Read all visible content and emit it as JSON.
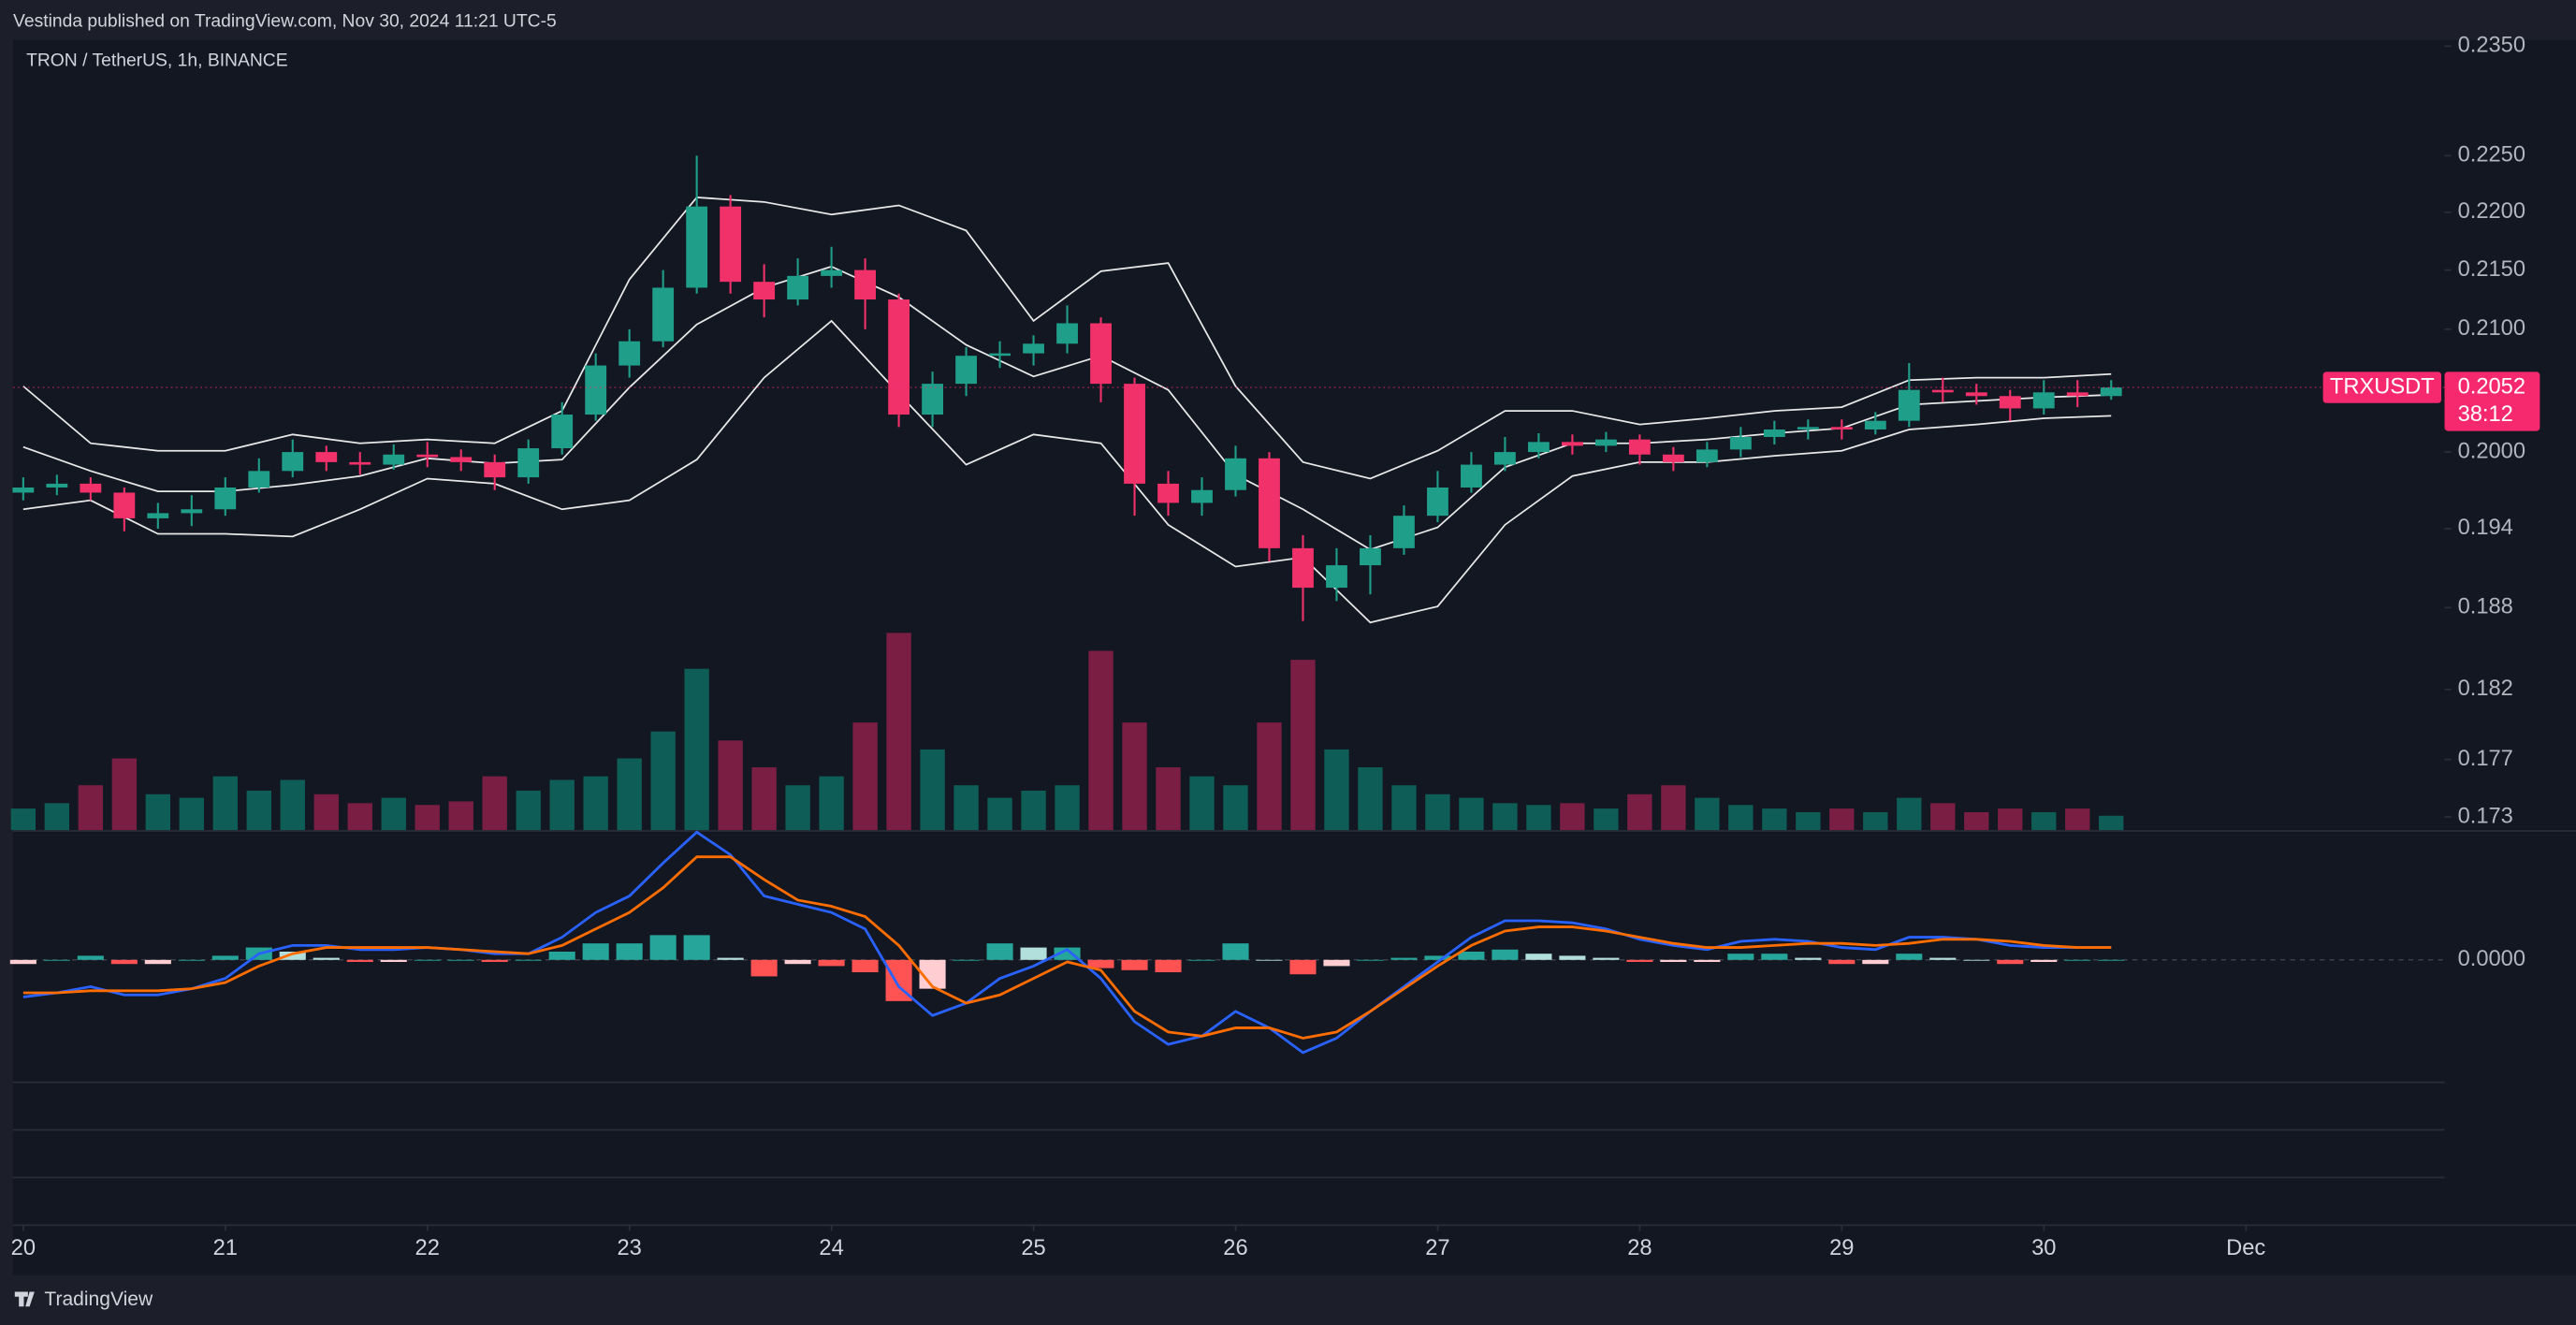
{
  "header": {
    "publisher": "Vestinda published on TradingView.com, Nov 30, 2024 11:21 UTC-5",
    "footer": "TradingView"
  },
  "chart_data": [
    {
      "type": "candlestick",
      "title": "TRON / TetherUS, 1h, BINANCE",
      "log_scale": true,
      "grid": false,
      "up_color": "#1f9e89",
      "down_color": "#f0316a",
      "volume_up_color": "#0e5e57",
      "volume_down_color": "#7a1f43",
      "x": [
        0,
        4,
        8,
        12,
        16,
        20,
        24,
        28,
        32,
        36,
        40,
        44,
        48,
        52,
        56,
        60,
        64,
        68,
        72,
        76,
        80,
        84,
        88,
        92,
        96,
        100,
        104,
        108,
        112,
        116,
        120,
        124,
        128,
        132,
        136,
        140,
        144,
        148,
        152,
        156,
        160,
        164,
        168,
        172,
        176,
        180,
        184,
        188,
        192,
        196,
        200,
        204,
        208,
        212,
        216,
        220,
        224,
        228,
        232,
        236,
        240,
        244,
        248
      ],
      "open": [
        0.1968,
        0.1972,
        0.1975,
        0.1968,
        0.1948,
        0.1952,
        0.1955,
        0.1972,
        0.1985,
        0.2,
        0.1992,
        0.199,
        0.1998,
        0.1996,
        0.1992,
        0.198,
        0.2003,
        0.203,
        0.207,
        0.209,
        0.2135,
        0.2205,
        0.214,
        0.2125,
        0.2145,
        0.215,
        0.2125,
        0.203,
        0.2055,
        0.2078,
        0.208,
        0.2088,
        0.2105,
        0.2055,
        0.1975,
        0.196,
        0.197,
        0.1995,
        0.1925,
        0.1895,
        0.1912,
        0.1925,
        0.195,
        0.1972,
        0.199,
        0.2,
        0.2008,
        0.2005,
        0.201,
        0.1998,
        0.1992,
        0.2002,
        0.2012,
        0.2018,
        0.202,
        0.2018,
        0.2025,
        0.205,
        0.2048,
        0.2045,
        0.2035,
        0.2048,
        0.2045
      ],
      "high": [
        0.198,
        0.1982,
        0.198,
        0.1972,
        0.196,
        0.1966,
        0.198,
        0.1995,
        0.201,
        0.2005,
        0.2,
        0.2006,
        0.2008,
        0.2002,
        0.1998,
        0.201,
        0.204,
        0.208,
        0.21,
        0.215,
        0.225,
        0.2215,
        0.2155,
        0.216,
        0.217,
        0.216,
        0.213,
        0.2065,
        0.2085,
        0.209,
        0.2095,
        0.212,
        0.211,
        0.206,
        0.1985,
        0.198,
        0.2005,
        0.2,
        0.1935,
        0.1925,
        0.1935,
        0.1958,
        0.1985,
        0.2,
        0.2012,
        0.2015,
        0.2014,
        0.2016,
        0.2014,
        0.2004,
        0.2008,
        0.202,
        0.2025,
        0.2026,
        0.2026,
        0.2032,
        0.2072,
        0.206,
        0.2055,
        0.205,
        0.2058,
        0.2058,
        0.2058
      ],
      "low": [
        0.1962,
        0.1966,
        0.1962,
        0.1938,
        0.194,
        0.1942,
        0.195,
        0.1968,
        0.198,
        0.1985,
        0.1982,
        0.1986,
        0.1988,
        0.1985,
        0.197,
        0.1975,
        0.1998,
        0.2025,
        0.206,
        0.2085,
        0.213,
        0.213,
        0.211,
        0.212,
        0.2135,
        0.21,
        0.202,
        0.202,
        0.2045,
        0.2068,
        0.207,
        0.208,
        0.204,
        0.195,
        0.195,
        0.195,
        0.1965,
        0.1915,
        0.187,
        0.1885,
        0.189,
        0.192,
        0.1945,
        0.1968,
        0.1985,
        0.1995,
        0.1998,
        0.2,
        0.199,
        0.1985,
        0.1988,
        0.1996,
        0.2006,
        0.201,
        0.201,
        0.2014,
        0.202,
        0.204,
        0.2038,
        0.2025,
        0.203,
        0.2036,
        0.2042
      ],
      "close": [
        0.1972,
        0.1975,
        0.1968,
        0.1948,
        0.1952,
        0.1955,
        0.1972,
        0.1985,
        0.2,
        0.1992,
        0.199,
        0.1998,
        0.1996,
        0.1992,
        0.198,
        0.2003,
        0.203,
        0.207,
        0.209,
        0.2135,
        0.2205,
        0.214,
        0.2125,
        0.2145,
        0.215,
        0.2125,
        0.203,
        0.2055,
        0.2078,
        0.208,
        0.2088,
        0.2105,
        0.2055,
        0.1975,
        0.196,
        0.197,
        0.1995,
        0.1925,
        0.1895,
        0.1912,
        0.1925,
        0.195,
        0.1972,
        0.199,
        0.2,
        0.2008,
        0.2005,
        0.201,
        0.1998,
        0.1992,
        0.2002,
        0.2012,
        0.2018,
        0.202,
        0.2018,
        0.2025,
        0.205,
        0.2048,
        0.2045,
        0.2035,
        0.2048,
        0.2045,
        0.2052
      ],
      "volume": [
        12,
        15,
        25,
        40,
        20,
        18,
        30,
        22,
        28,
        20,
        15,
        18,
        14,
        16,
        30,
        22,
        28,
        30,
        40,
        55,
        90,
        50,
        35,
        25,
        30,
        60,
        110,
        45,
        25,
        18,
        22,
        25,
        100,
        60,
        35,
        30,
        25,
        60,
        95,
        45,
        35,
        25,
        20,
        18,
        15,
        14,
        15,
        12,
        20,
        25,
        18,
        14,
        12,
        10,
        12,
        10,
        18,
        15,
        10,
        12,
        10,
        12,
        8
      ],
      "bands": {
        "color": "#e8e8e8",
        "x": [
          0,
          8,
          16,
          24,
          32,
          40,
          48,
          56,
          64,
          72,
          80,
          88,
          96,
          104,
          112,
          120,
          128,
          136,
          144,
          152,
          160,
          168,
          176,
          184,
          192,
          200,
          208,
          216,
          224,
          232,
          240,
          248
        ],
        "upper": [
          0.2053,
          0.2007,
          0.2001,
          0.2001,
          0.2014,
          0.2007,
          0.201,
          0.2007,
          0.2033,
          0.2142,
          0.2213,
          0.2209,
          0.2198,
          0.2206,
          0.2184,
          0.2107,
          0.2149,
          0.2156,
          0.2053,
          0.1992,
          0.1979,
          0.2001,
          0.2033,
          0.2033,
          0.2022,
          0.2027,
          0.2033,
          0.2036,
          0.2058,
          0.206,
          0.206,
          0.2063
        ],
        "middle": [
          0.2004,
          0.1985,
          0.1969,
          0.1969,
          0.1974,
          0.1981,
          0.1995,
          0.1991,
          0.1994,
          0.2052,
          0.2104,
          0.2135,
          0.2153,
          0.2127,
          0.2087,
          0.2061,
          0.2078,
          0.205,
          0.1982,
          0.1955,
          0.1924,
          0.1941,
          0.1988,
          0.2007,
          0.2007,
          0.201,
          0.2015,
          0.2019,
          0.2038,
          0.2041,
          0.2044,
          0.2046
        ],
        "lower": [
          0.1955,
          0.1962,
          0.1936,
          0.1936,
          0.1934,
          0.1955,
          0.1979,
          0.1975,
          0.1955,
          0.1962,
          0.1994,
          0.206,
          0.2107,
          0.2047,
          0.199,
          0.2014,
          0.2007,
          0.1943,
          0.1911,
          0.1918,
          0.1869,
          0.1881,
          0.1943,
          0.1981,
          0.1992,
          0.1992,
          0.1997,
          0.2001,
          0.2018,
          0.2022,
          0.2027,
          0.2029
        ]
      },
      "xlim": [
        -1.2,
        287.6
      ],
      "xticks": [
        {
          "value": 0,
          "label": "20"
        },
        {
          "value": 24,
          "label": "21"
        },
        {
          "value": 48,
          "label": "22"
        },
        {
          "value": 72,
          "label": "23"
        },
        {
          "value": 96,
          "label": "24"
        },
        {
          "value": 120,
          "label": "25"
        },
        {
          "value": 144,
          "label": "26"
        },
        {
          "value": 168,
          "label": "27"
        },
        {
          "value": 192,
          "label": "28"
        },
        {
          "value": 216,
          "label": "29"
        },
        {
          "value": 240,
          "label": "30"
        },
        {
          "value": 264,
          "label": "Dec"
        }
      ],
      "ylim": [
        0.1721,
        0.2356
      ],
      "yticks": [
        {
          "value": 0.235,
          "label": "0.2350"
        },
        {
          "value": 0.225,
          "label": "0.2250"
        },
        {
          "value": 0.22,
          "label": "0.2200"
        },
        {
          "value": 0.215,
          "label": "0.2150"
        },
        {
          "value": 0.21,
          "label": "0.2100"
        },
        {
          "value": 0.2,
          "label": "0.2000"
        },
        0.194,
        0.188,
        0.182,
        0.177,
        0.173
      ],
      "symbol": "TRXUSDT",
      "last_price": 0.2052,
      "countdown": "38:12",
      "last_price_color": "#f7296e"
    },
    {
      "type": "line",
      "x": [
        0,
        4,
        8,
        12,
        16,
        20,
        24,
        28,
        32,
        36,
        40,
        44,
        48,
        52,
        56,
        60,
        64,
        68,
        72,
        76,
        80,
        84,
        88,
        92,
        96,
        100,
        104,
        108,
        112,
        116,
        120,
        124,
        128,
        132,
        136,
        140,
        144,
        148,
        152,
        156,
        160,
        164,
        168,
        172,
        176,
        180,
        184,
        188,
        192,
        196,
        200,
        204,
        208,
        212,
        216,
        220,
        224,
        228,
        232,
        236,
        240,
        244,
        248
      ],
      "xlim": [
        -1.2,
        287.6
      ],
      "ylim": [
        -0.0059,
        0.0063
      ],
      "yticks": [
        {
          "value": 0,
          "label": "0.0000"
        }
      ],
      "series": [
        {
          "color": "#2962ff",
          "values": [
            -0.0018,
            -0.0016,
            -0.0013,
            -0.0017,
            -0.0017,
            -0.0014,
            -0.0009,
            0.0003,
            0.0007,
            0.0007,
            0.0005,
            0.0005,
            0.0006,
            0.0005,
            0.0003,
            0.0003,
            0.0011,
            0.0023,
            0.0031,
            0.0047,
            0.0062,
            0.0051,
            0.0031,
            0.0027,
            0.0023,
            0.0015,
            -0.0013,
            -0.0027,
            -0.0021,
            -0.0009,
            -0.0003,
            0.0005,
            -0.0009,
            -0.003,
            -0.0041,
            -0.0037,
            -0.0025,
            -0.0033,
            -0.0045,
            -0.0038,
            -0.0025,
            -0.0013,
            -0.0001,
            0.0011,
            0.0019,
            0.0019,
            0.0018,
            0.0015,
            0.001,
            0.0007,
            0.0005,
            0.0009,
            0.001,
            0.0009,
            0.0006,
            0.0005,
            0.0011,
            0.0011,
            0.001,
            0.0007,
            0.0006,
            0.0006,
            0.0006
          ]
        },
        {
          "color": "#ff6d00",
          "values": [
            -0.0016,
            -0.0016,
            -0.0015,
            -0.0015,
            -0.0015,
            -0.0014,
            -0.0011,
            -0.0003,
            0.0003,
            0.0006,
            0.0006,
            0.0006,
            0.0006,
            0.0005,
            0.0004,
            0.0003,
            0.0007,
            0.0015,
            0.0023,
            0.0035,
            0.005,
            0.005,
            0.0039,
            0.0029,
            0.0026,
            0.0021,
            0.0007,
            -0.0013,
            -0.0021,
            -0.0017,
            -0.0009,
            -0.0001,
            -0.0005,
            -0.0025,
            -0.0035,
            -0.0037,
            -0.0033,
            -0.0033,
            -0.0038,
            -0.0035,
            -0.0025,
            -0.0014,
            -0.0003,
            0.0007,
            0.0014,
            0.0016,
            0.0016,
            0.0014,
            0.0011,
            0.0008,
            0.0006,
            0.0006,
            0.0007,
            0.0008,
            0.0008,
            0.0007,
            0.0008,
            0.001,
            0.001,
            0.0009,
            0.0007,
            0.0006,
            0.0006
          ]
        }
      ],
      "histogram": {
        "colors": [
          "#26a69a",
          "#b2dfdb",
          "#ffcdd2",
          "#ff5252"
        ],
        "values": [
          -0.0002,
          0.0,
          0.0002,
          -0.0002,
          -0.0002,
          0.0,
          0.0002,
          0.0006,
          0.0004,
          0.0001,
          -0.0001,
          -0.0001,
          0.0,
          0.0,
          -0.0001,
          0.0,
          0.0004,
          0.0008,
          0.0008,
          0.0012,
          0.0012,
          0.0001,
          -0.0008,
          -0.0002,
          -0.0003,
          -0.0006,
          -0.002,
          -0.0014,
          0.0,
          0.0008,
          0.0006,
          0.0006,
          -0.0004,
          -0.0005,
          -0.0006,
          0.0,
          0.0008,
          0.0,
          -0.0007,
          -0.0003,
          0.0,
          0.0001,
          0.0002,
          0.0004,
          0.0005,
          0.0003,
          0.0002,
          0.0001,
          -0.0001,
          -0.0001,
          -0.0001,
          0.0003,
          0.0003,
          0.0001,
          -0.0002,
          -0.0002,
          0.0003,
          0.0001,
          0.0,
          -0.0002,
          -0.0001,
          0.0,
          0.0
        ]
      }
    }
  ]
}
